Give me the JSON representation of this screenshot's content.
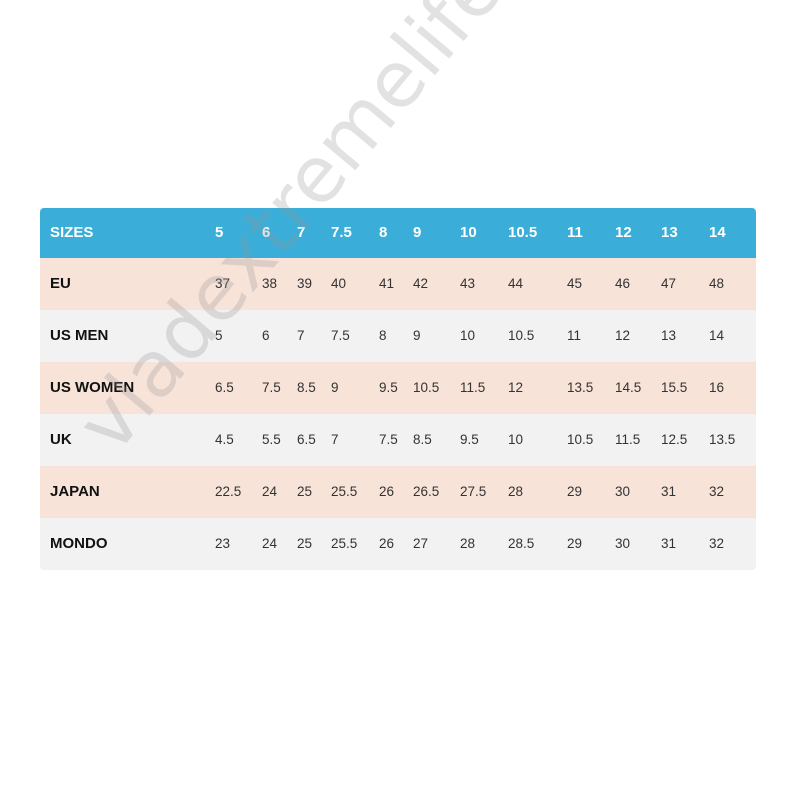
{
  "table": {
    "header_label": "SIZES",
    "columns": [
      "5",
      "6",
      "7",
      "7.5",
      "8",
      "9",
      "10",
      "10.5",
      "11",
      "12",
      "13",
      "14"
    ],
    "rows": [
      {
        "label": "EU",
        "values": [
          "37",
          "38",
          "39",
          "40",
          "41",
          "42",
          "43",
          "44",
          "45",
          "46",
          "47",
          "48"
        ]
      },
      {
        "label": "US MEN",
        "values": [
          "5",
          "6",
          "7",
          "7.5",
          "8",
          "9",
          "10",
          "10.5",
          "11",
          "12",
          "13",
          "14"
        ]
      },
      {
        "label": "US WOMEN",
        "values": [
          "6.5",
          "7.5",
          "8.5",
          "9",
          "9.5",
          "10.5",
          "11.5",
          "12",
          "13.5",
          "14.5",
          "15.5",
          "16"
        ]
      },
      {
        "label": "UK",
        "values": [
          "4.5",
          "5.5",
          "6.5",
          "7",
          "7.5",
          "8.5",
          "9.5",
          "10",
          "10.5",
          "11.5",
          "12.5",
          "13.5"
        ]
      },
      {
        "label": "JAPAN",
        "values": [
          "22.5",
          "24",
          "25",
          "25.5",
          "26",
          "26.5",
          "27.5",
          "28",
          "29",
          "30",
          "31",
          "32"
        ]
      },
      {
        "label": "MONDO",
        "values": [
          "23",
          "24",
          "25",
          "25.5",
          "26",
          "27",
          "28",
          "28.5",
          "29",
          "30",
          "31",
          "32"
        ]
      }
    ]
  },
  "colors": {
    "header": "#3aaed8",
    "row_peach": "#f7e3d8",
    "row_gray": "#f2f2f2"
  },
  "watermark": "vladextremelife.ru"
}
